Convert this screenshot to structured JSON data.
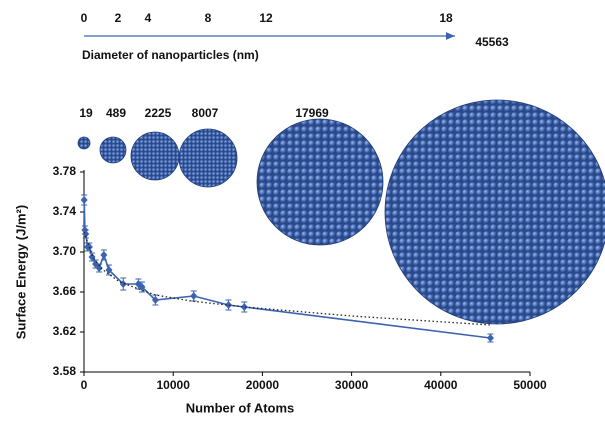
{
  "chart_data": {
    "type": "line",
    "x_label": "Number of Atoms",
    "y_label": "Surface Energy (J/m²)",
    "xlim": [
      0,
      50000
    ],
    "ylim": [
      3.58,
      3.78
    ],
    "xticks": [
      0,
      10000,
      20000,
      30000,
      40000,
      50000
    ],
    "yticks": [
      3.58,
      3.62,
      3.66,
      {
        "value": 3.7,
        "label": "3.70"
      },
      3.74,
      3.78
    ],
    "series": [
      {
        "color": "#3b63b0",
        "marker": "diamond",
        "x": [
          19,
          100,
          200,
          400,
          600,
          900,
          1300,
          1700,
          2225,
          2800,
          4400,
          6100,
          6500,
          8007,
          12300,
          16200,
          17969,
          45563
        ],
        "values": [
          3.752,
          3.722,
          3.718,
          3.705,
          3.705,
          3.695,
          3.688,
          3.684,
          3.697,
          3.682,
          3.668,
          3.668,
          3.665,
          3.652,
          3.656,
          3.647,
          3.645,
          3.614
        ],
        "errors": [
          0.005,
          0.004,
          0.004,
          0.004,
          0.004,
          0.004,
          0.004,
          0.004,
          0.005,
          0.005,
          0.006,
          0.005,
          0.005,
          0.005,
          0.005,
          0.005,
          0.005,
          0.004
        ]
      },
      {
        "color": "#222222",
        "style": "dotted",
        "x": [
          0,
          1000,
          2000,
          4000,
          8000,
          12000,
          18000,
          30000,
          45563
        ],
        "values": [
          3.72,
          3.695,
          3.683,
          3.67,
          3.657,
          3.651,
          3.645,
          3.636,
          3.627
        ]
      }
    ],
    "top_axis": {
      "label": "Diameter of nanoparticles (nm)",
      "ticks": [
        0,
        2,
        4,
        8,
        12,
        18
      ],
      "color": "#3b63b0"
    },
    "particles": [
      19,
      489,
      2225,
      8007,
      17969,
      45563
    ]
  }
}
